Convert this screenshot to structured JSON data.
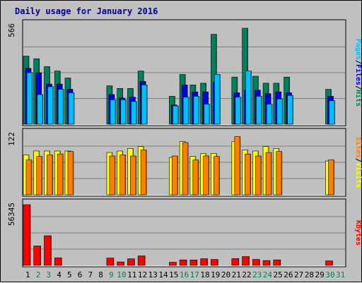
{
  "title": "Daily usage for January 2016",
  "colors": {
    "background": "#c0c0c0",
    "plot": "#c0c0c0",
    "title": "#0000a0",
    "hits": "#00805c",
    "files": "#0000e0",
    "pages": "#00c0ff",
    "visits": "#ffff00",
    "sites": "#ff8000",
    "kbytes": "#ff0000",
    "weekend": "#00805c",
    "weekday": "#000000"
  },
  "chart_data": {
    "type": "bar",
    "x_labels": [
      "1",
      "2",
      "3",
      "4",
      "5",
      "6",
      "7",
      "8",
      "9",
      "10",
      "11",
      "12",
      "13",
      "14",
      "15",
      "16",
      "17",
      "18",
      "19",
      "20",
      "21",
      "22",
      "23",
      "24",
      "25",
      "26",
      "27",
      "28",
      "29",
      "30",
      "31"
    ],
    "weekend_days": [
      2,
      3,
      9,
      10,
      16,
      17,
      23,
      24,
      30,
      31
    ],
    "panels": [
      {
        "name": "pages-files-hits",
        "ymax_label": "566",
        "ymax": 566,
        "legend": [
          {
            "text": "Pages",
            "color_key": "pages"
          },
          {
            "text": "/",
            "color_key": "weekday"
          },
          {
            "text": "Files",
            "color_key": "files"
          },
          {
            "text": "/",
            "color_key": "weekday"
          },
          {
            "text": "Hits",
            "color_key": "hits"
          }
        ],
        "series": [
          {
            "name": "Hits",
            "color_key": "hits",
            "values": [
              390,
              375,
              330,
              305,
              265,
              0,
              0,
              0,
              220,
              205,
              205,
              305,
              0,
              0,
              160,
              285,
              225,
              235,
              515,
              0,
              270,
              550,
              275,
              235,
              235,
              270,
              0,
              0,
              0,
              200,
              0
            ]
          },
          {
            "name": "Files",
            "color_key": "files",
            "values": [
              320,
              295,
              230,
              230,
              200,
              0,
              0,
              0,
              170,
              150,
              155,
              245,
              0,
              0,
              110,
              225,
              185,
              185,
              240,
              0,
              180,
              195,
              195,
              175,
              185,
              180,
              0,
              0,
              0,
              160,
              0
            ]
          },
          {
            "name": "Pages",
            "color_key": "pages",
            "values": [
              295,
              170,
              215,
              200,
              180,
              0,
              0,
              0,
              140,
              140,
              130,
              225,
              0,
              0,
              105,
              155,
              160,
              115,
              285,
              0,
              155,
              305,
              160,
              115,
              145,
              165,
              0,
              0,
              0,
              135,
              0
            ]
          }
        ]
      },
      {
        "name": "sites-visits",
        "ymax_label": "122",
        "ymax": 122,
        "legend": [
          {
            "text": "Sites",
            "color_key": "sites"
          },
          {
            "text": "/",
            "color_key": "weekday"
          },
          {
            "text": "Visits",
            "color_key": "visits"
          }
        ],
        "series": [
          {
            "name": "Visits",
            "color_key": "visits",
            "values": [
              80,
              88,
              88,
              88,
              88,
              0,
              0,
              0,
              85,
              88,
              93,
              97,
              0,
              0,
              75,
              107,
              77,
              83,
              83,
              0,
              107,
              90,
              88,
              97,
              93,
              0,
              0,
              0,
              0,
              68,
              0
            ]
          },
          {
            "name": "Sites",
            "color_key": "sites",
            "values": [
              70,
              77,
              80,
              82,
              87,
              0,
              0,
              0,
              78,
              80,
              78,
              90,
              0,
              0,
              78,
              105,
              70,
              78,
              77,
              0,
              117,
              82,
              78,
              85,
              87,
              0,
              0,
              0,
              0,
              70,
              0
            ]
          }
        ]
      },
      {
        "name": "kbytes",
        "ymax_label": "56345",
        "ymax": 56345,
        "legend": [
          {
            "text": "KBytes",
            "color_key": "kbytes"
          }
        ],
        "series": [
          {
            "name": "KBytes",
            "color_key": "kbytes",
            "values": [
              56345,
              18000,
              27500,
              7000,
              0,
              0,
              0,
              0,
              6800,
              3200,
              6100,
              8800,
              0,
              0,
              2900,
              5100,
              5000,
              6200,
              5500,
              0,
              6300,
              8200,
              5500,
              4500,
              5100,
              0,
              0,
              0,
              0,
              4200,
              0
            ]
          }
        ]
      }
    ]
  }
}
